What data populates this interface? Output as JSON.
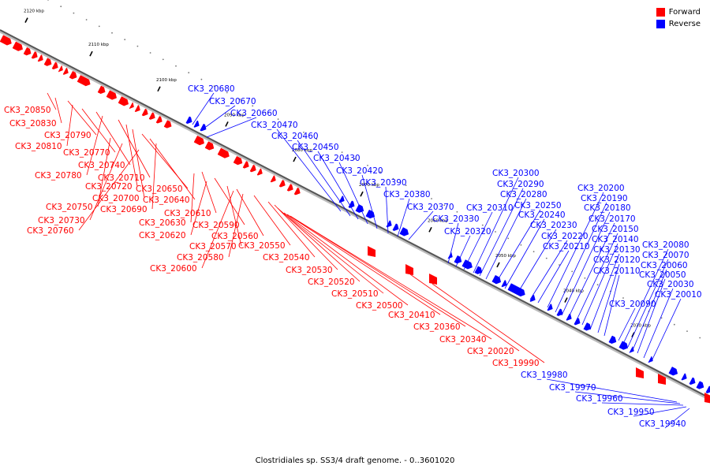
{
  "caption": "Clostridiales sp. SS3/4 draft genome. - 0..3601020",
  "legend": [
    {
      "label": "Forward",
      "color": "#ff0000"
    },
    {
      "label": "Reverse",
      "color": "#0000ff"
    }
  ],
  "colors": {
    "forward": "#ff0000",
    "reverse": "#0000ff",
    "backbone": "#555555"
  },
  "ticks": [
    "2120 kbp",
    "2110 kbp",
    "2100 kbp",
    "2090 kbp",
    "2080 kbp",
    "2070 kbp",
    "2060 kbp",
    "2050 kbp",
    "2040 kbp",
    "2030 kbp"
  ],
  "genes": [
    {
      "id": "CK3_20850",
      "strand": "forward"
    },
    {
      "id": "CK3_20830",
      "strand": "forward"
    },
    {
      "id": "CK3_20790",
      "strand": "forward"
    },
    {
      "id": "CK3_20810",
      "strand": "forward"
    },
    {
      "id": "CK3_20770",
      "strand": "forward"
    },
    {
      "id": "CK3_20740",
      "strand": "forward"
    },
    {
      "id": "CK3_20780",
      "strand": "forward"
    },
    {
      "id": "CK3_20710",
      "strand": "forward"
    },
    {
      "id": "CK3_20720",
      "strand": "forward"
    },
    {
      "id": "CK3_20700",
      "strand": "forward"
    },
    {
      "id": "CK3_20650",
      "strand": "forward"
    },
    {
      "id": "CK3_20640",
      "strand": "forward"
    },
    {
      "id": "CK3_20750",
      "strand": "forward"
    },
    {
      "id": "CK3_20690",
      "strand": "forward"
    },
    {
      "id": "CK3_20730",
      "strand": "forward"
    },
    {
      "id": "CK3_20760",
      "strand": "forward"
    },
    {
      "id": "CK3_20610",
      "strand": "forward"
    },
    {
      "id": "CK3_20630",
      "strand": "forward"
    },
    {
      "id": "CK3_20590",
      "strand": "forward"
    },
    {
      "id": "CK3_20620",
      "strand": "forward"
    },
    {
      "id": "CK3_20560",
      "strand": "forward"
    },
    {
      "id": "CK3_20570",
      "strand": "forward"
    },
    {
      "id": "CK3_20550",
      "strand": "forward"
    },
    {
      "id": "CK3_20580",
      "strand": "forward"
    },
    {
      "id": "CK3_20540",
      "strand": "forward"
    },
    {
      "id": "CK3_20600",
      "strand": "forward"
    },
    {
      "id": "CK3_20530",
      "strand": "forward"
    },
    {
      "id": "CK3_20520",
      "strand": "forward"
    },
    {
      "id": "CK3_20510",
      "strand": "forward"
    },
    {
      "id": "CK3_20500",
      "strand": "forward"
    },
    {
      "id": "CK3_20410",
      "strand": "forward"
    },
    {
      "id": "CK3_20360",
      "strand": "forward"
    },
    {
      "id": "CK3_20340",
      "strand": "forward"
    },
    {
      "id": "CK3_20020",
      "strand": "forward"
    },
    {
      "id": "CK3_19990",
      "strand": "forward"
    },
    {
      "id": "CK3_20680",
      "strand": "reverse"
    },
    {
      "id": "CK3_20670",
      "strand": "reverse"
    },
    {
      "id": "CK3_20660",
      "strand": "reverse"
    },
    {
      "id": "CK3_20470",
      "strand": "reverse"
    },
    {
      "id": "CK3_20460",
      "strand": "reverse"
    },
    {
      "id": "CK3_20450",
      "strand": "reverse"
    },
    {
      "id": "CK3_20430",
      "strand": "reverse"
    },
    {
      "id": "CK3_20420",
      "strand": "reverse"
    },
    {
      "id": "CK3_20390",
      "strand": "reverse"
    },
    {
      "id": "CK3_20380",
      "strand": "reverse"
    },
    {
      "id": "CK3_20370",
      "strand": "reverse"
    },
    {
      "id": "CK3_20330",
      "strand": "reverse"
    },
    {
      "id": "CK3_20320",
      "strand": "reverse"
    },
    {
      "id": "CK3_20310",
      "strand": "reverse"
    },
    {
      "id": "CK3_20300",
      "strand": "reverse"
    },
    {
      "id": "CK3_20290",
      "strand": "reverse"
    },
    {
      "id": "CK3_20280",
      "strand": "reverse"
    },
    {
      "id": "CK3_20250",
      "strand": "reverse"
    },
    {
      "id": "CK3_20240",
      "strand": "reverse"
    },
    {
      "id": "CK3_20230",
      "strand": "reverse"
    },
    {
      "id": "CK3_20220",
      "strand": "reverse"
    },
    {
      "id": "CK3_20210",
      "strand": "reverse"
    },
    {
      "id": "CK3_20200",
      "strand": "reverse"
    },
    {
      "id": "CK3_20190",
      "strand": "reverse"
    },
    {
      "id": "CK3_20180",
      "strand": "reverse"
    },
    {
      "id": "CK3_20170",
      "strand": "reverse"
    },
    {
      "id": "CK3_20150",
      "strand": "reverse"
    },
    {
      "id": "CK3_20140",
      "strand": "reverse"
    },
    {
      "id": "CK3_20130",
      "strand": "reverse"
    },
    {
      "id": "CK3_20120",
      "strand": "reverse"
    },
    {
      "id": "CK3_20110",
      "strand": "reverse"
    },
    {
      "id": "CK3_20090",
      "strand": "reverse"
    },
    {
      "id": "CK3_20080",
      "strand": "reverse"
    },
    {
      "id": "CK3_20070",
      "strand": "reverse"
    },
    {
      "id": "CK3_20060",
      "strand": "reverse"
    },
    {
      "id": "CK3_20050",
      "strand": "reverse"
    },
    {
      "id": "CK3_20030",
      "strand": "reverse"
    },
    {
      "id": "CK3_20010",
      "strand": "reverse"
    },
    {
      "id": "CK3_19980",
      "strand": "reverse"
    },
    {
      "id": "CK3_19970",
      "strand": "reverse"
    },
    {
      "id": "CK3_19960",
      "strand": "reverse"
    },
    {
      "id": "CK3_19950",
      "strand": "reverse"
    },
    {
      "id": "CK3_19940",
      "strand": "reverse"
    }
  ]
}
